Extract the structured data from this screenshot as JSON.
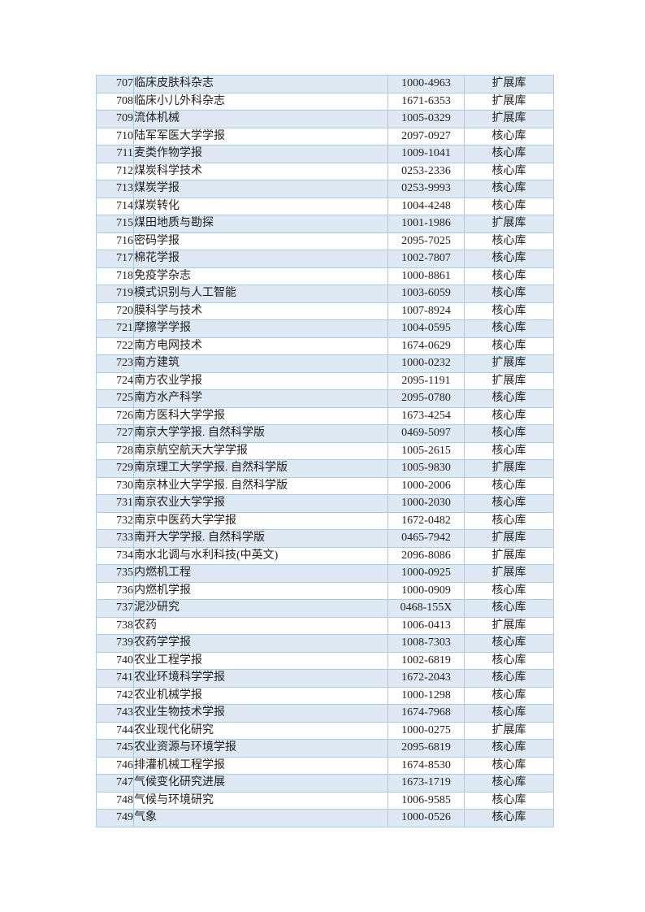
{
  "document": {
    "type": "journal-list-page",
    "colors": {
      "page_background": "#ffffff",
      "row_alt_fill": "#dee9f4",
      "table_border": "#a9cbe5",
      "text": "#1f1f1f"
    }
  },
  "table": {
    "columns": [
      "no",
      "title",
      "issn",
      "tier"
    ],
    "tier_values_seen": [
      "核心库",
      "扩展库"
    ],
    "rows": [
      {
        "no": "707",
        "title": "临床皮肤科杂志",
        "issn": "1000-4963",
        "tier": "扩展库"
      },
      {
        "no": "708",
        "title": "临床小儿外科杂志",
        "issn": "1671-6353",
        "tier": "扩展库"
      },
      {
        "no": "709",
        "title": "流体机械",
        "issn": "1005-0329",
        "tier": "扩展库"
      },
      {
        "no": "710",
        "title": "陆军军医大学学报",
        "issn": "2097-0927",
        "tier": "核心库"
      },
      {
        "no": "711",
        "title": "麦类作物学报",
        "issn": "1009-1041",
        "tier": "核心库"
      },
      {
        "no": "712",
        "title": "煤炭科学技术",
        "issn": "0253-2336",
        "tier": "核心库"
      },
      {
        "no": "713",
        "title": "煤炭学报",
        "issn": "0253-9993",
        "tier": "核心库"
      },
      {
        "no": "714",
        "title": "煤炭转化",
        "issn": "1004-4248",
        "tier": "核心库"
      },
      {
        "no": "715",
        "title": "煤田地质与勘探",
        "issn": "1001-1986",
        "tier": "扩展库"
      },
      {
        "no": "716",
        "title": "密码学报",
        "issn": "2095-7025",
        "tier": "核心库"
      },
      {
        "no": "717",
        "title": "棉花学报",
        "issn": "1002-7807",
        "tier": "核心库"
      },
      {
        "no": "718",
        "title": "免疫学杂志",
        "issn": "1000-8861",
        "tier": "核心库"
      },
      {
        "no": "719",
        "title": "模式识别与人工智能",
        "issn": "1003-6059",
        "tier": "核心库"
      },
      {
        "no": "720",
        "title": "膜科学与技术",
        "issn": "1007-8924",
        "tier": "核心库"
      },
      {
        "no": "721",
        "title": "摩擦学学报",
        "issn": "1004-0595",
        "tier": "核心库"
      },
      {
        "no": "722",
        "title": "南方电网技术",
        "issn": "1674-0629",
        "tier": "核心库"
      },
      {
        "no": "723",
        "title": "南方建筑",
        "issn": "1000-0232",
        "tier": "扩展库"
      },
      {
        "no": "724",
        "title": "南方农业学报",
        "issn": "2095-1191",
        "tier": "扩展库"
      },
      {
        "no": "725",
        "title": "南方水产科学",
        "issn": "2095-0780",
        "tier": "核心库"
      },
      {
        "no": "726",
        "title": "南方医科大学学报",
        "issn": "1673-4254",
        "tier": "核心库"
      },
      {
        "no": "727",
        "title": "南京大学学报. 自然科学版",
        "issn": "0469-5097",
        "tier": "核心库"
      },
      {
        "no": "728",
        "title": "南京航空航天大学学报",
        "issn": "1005-2615",
        "tier": "核心库"
      },
      {
        "no": "729",
        "title": "南京理工大学学报. 自然科学版",
        "issn": "1005-9830",
        "tier": "扩展库"
      },
      {
        "no": "730",
        "title": "南京林业大学学报. 自然科学版",
        "issn": "1000-2006",
        "tier": "核心库"
      },
      {
        "no": "731",
        "title": "南京农业大学学报",
        "issn": "1000-2030",
        "tier": "核心库"
      },
      {
        "no": "732",
        "title": "南京中医药大学学报",
        "issn": "1672-0482",
        "tier": "核心库"
      },
      {
        "no": "733",
        "title": "南开大学学报. 自然科学版",
        "issn": "0465-7942",
        "tier": "扩展库"
      },
      {
        "no": "734",
        "title": "南水北调与水利科技(中英文)",
        "issn": "2096-8086",
        "tier": "扩展库"
      },
      {
        "no": "735",
        "title": "内燃机工程",
        "issn": "1000-0925",
        "tier": "扩展库"
      },
      {
        "no": "736",
        "title": "内燃机学报",
        "issn": "1000-0909",
        "tier": "核心库"
      },
      {
        "no": "737",
        "title": "泥沙研究",
        "issn": "0468-155X",
        "tier": "核心库"
      },
      {
        "no": "738",
        "title": "农药",
        "issn": "1006-0413",
        "tier": "扩展库"
      },
      {
        "no": "739",
        "title": "农药学学报",
        "issn": "1008-7303",
        "tier": "核心库"
      },
      {
        "no": "740",
        "title": "农业工程学报",
        "issn": "1002-6819",
        "tier": "核心库"
      },
      {
        "no": "741",
        "title": "农业环境科学学报",
        "issn": "1672-2043",
        "tier": "核心库"
      },
      {
        "no": "742",
        "title": "农业机械学报",
        "issn": "1000-1298",
        "tier": "核心库"
      },
      {
        "no": "743",
        "title": "农业生物技术学报",
        "issn": "1674-7968",
        "tier": "核心库"
      },
      {
        "no": "744",
        "title": "农业现代化研究",
        "issn": "1000-0275",
        "tier": "扩展库"
      },
      {
        "no": "745",
        "title": "农业资源与环境学报",
        "issn": "2095-6819",
        "tier": "核心库"
      },
      {
        "no": "746",
        "title": "排灌机械工程学报",
        "issn": "1674-8530",
        "tier": "核心库"
      },
      {
        "no": "747",
        "title": "气候变化研究进展",
        "issn": "1673-1719",
        "tier": "核心库"
      },
      {
        "no": "748",
        "title": "气候与环境研究",
        "issn": "1006-9585",
        "tier": "核心库"
      },
      {
        "no": "749",
        "title": "气象",
        "issn": "1000-0526",
        "tier": "核心库"
      }
    ]
  }
}
